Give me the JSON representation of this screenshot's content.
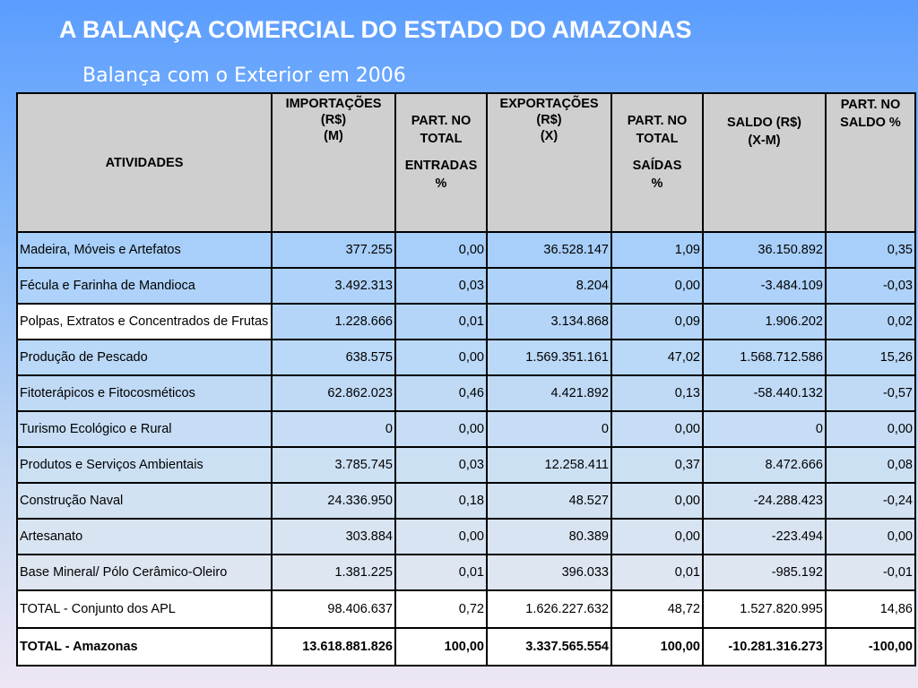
{
  "title": "A BALANÇA COMERCIAL DO ESTADO DO AMAZONAS",
  "subtitle": "Balança com o Exterior em 2006",
  "headers": {
    "atividades": "ATIVIDADES",
    "importacoes": [
      "IMPORTAÇÕES",
      "(R$)",
      "(M)"
    ],
    "part_entradas": [
      "PART. NO",
      "TOTAL",
      "ENTRADAS",
      "%"
    ],
    "exportacoes": [
      "EXPORTAÇÕES",
      "(R$)",
      "(X)"
    ],
    "part_saidas": [
      "PART. NO",
      "TOTAL",
      "SAÍDAS",
      "%"
    ],
    "saldo": [
      "SALDO (R$)",
      "(X-M)"
    ],
    "part_saldo": [
      "PART. NO",
      "SALDO %"
    ]
  },
  "rows": [
    {
      "atividade": "Madeira, Móveis e Artefatos",
      "importacoes": "377.255",
      "part_entradas": "0,00",
      "exportacoes": "36.528.147",
      "part_saidas": "1,09",
      "saldo": "36.150.892",
      "part_saldo": "0,35",
      "bg": "#a8cffa"
    },
    {
      "atividade": "Fécula e Farinha de Mandioca",
      "importacoes": "3.492.313",
      "part_entradas": "0,03",
      "exportacoes": "8.204",
      "part_saidas": "0,00",
      "saldo": "-3.484.109",
      "part_saldo": "-0,03",
      "bg": "#aed2f9"
    },
    {
      "atividade": "Polpas, Extratos e Concentrados de Frutas",
      "importacoes": "1.228.666",
      "part_entradas": "0,01",
      "exportacoes": "3.134.868",
      "part_saidas": "0,09",
      "saldo": "1.906.202",
      "part_saldo": "0,02",
      "bg": "#b4d5f8"
    },
    {
      "atividade": "Produção de Pescado",
      "importacoes": "638.575",
      "part_entradas": "0,00",
      "exportacoes": "1.569.351.161",
      "part_saidas": "47,02",
      "saldo": "1.568.712.586",
      "part_saldo": "15,26",
      "bg": "#bad8f7"
    },
    {
      "atividade": "Fitoterápicos e Fitocosméticos",
      "importacoes": "62.862.023",
      "part_entradas": "0,46",
      "exportacoes": "4.421.892",
      "part_saidas": "0,13",
      "saldo": "-58.440.132",
      "part_saldo": "-0,57",
      "bg": "#c0daf6"
    },
    {
      "atividade": "Turismo Ecológico e Rural",
      "importacoes": "0",
      "part_entradas": "0,00",
      "exportacoes": "0",
      "part_saidas": "0,00",
      "saldo": "0",
      "part_saldo": "0,00",
      "bg": "#c6ddf5"
    },
    {
      "atividade": "Produtos e Serviços Ambientais",
      "importacoes": "3.785.745",
      "part_entradas": "0,03",
      "exportacoes": "12.258.411",
      "part_saidas": "0,37",
      "saldo": "8.472.666",
      "part_saldo": "0,08",
      "bg": "#cce0f4"
    },
    {
      "atividade": "Construção Naval",
      "importacoes": "24.336.950",
      "part_entradas": "0,18",
      "exportacoes": "48.527",
      "part_saidas": "0,00",
      "saldo": "-24.288.423",
      "part_saldo": "-0,24",
      "bg": "#d2e2f3"
    },
    {
      "atividade": "Artesanato",
      "importacoes": "303.884",
      "part_entradas": "0,00",
      "exportacoes": "80.389",
      "part_saidas": "0,00",
      "saldo": "-223.494",
      "part_saldo": "0,00",
      "bg": "#d8e4f2"
    },
    {
      "atividade": "Base Mineral/ Pólo Cerâmico-Oleiro",
      "importacoes": "1.381.225",
      "part_entradas": "0,01",
      "exportacoes": "396.033",
      "part_saidas": "0,01",
      "saldo": "-985.192",
      "part_saldo": "-0,01",
      "bg": "#dee6f2"
    },
    {
      "atividade": "TOTAL - Conjunto dos APL",
      "importacoes": "98.406.637",
      "part_entradas": "0,72",
      "exportacoes": "1.626.227.632",
      "part_saidas": "48,72",
      "saldo": "1.527.820.995",
      "part_saldo": "14,86",
      "bg": "#e8e6f4"
    },
    {
      "atividade": "TOTAL - Amazonas",
      "importacoes": "13.618.881.826",
      "part_entradas": "100,00",
      "exportacoes": "3.337.565.554",
      "part_saidas": "100,00",
      "saldo": "-10.281.316.273",
      "part_saldo": "-100,00",
      "bg": "#f0e8f6"
    }
  ]
}
